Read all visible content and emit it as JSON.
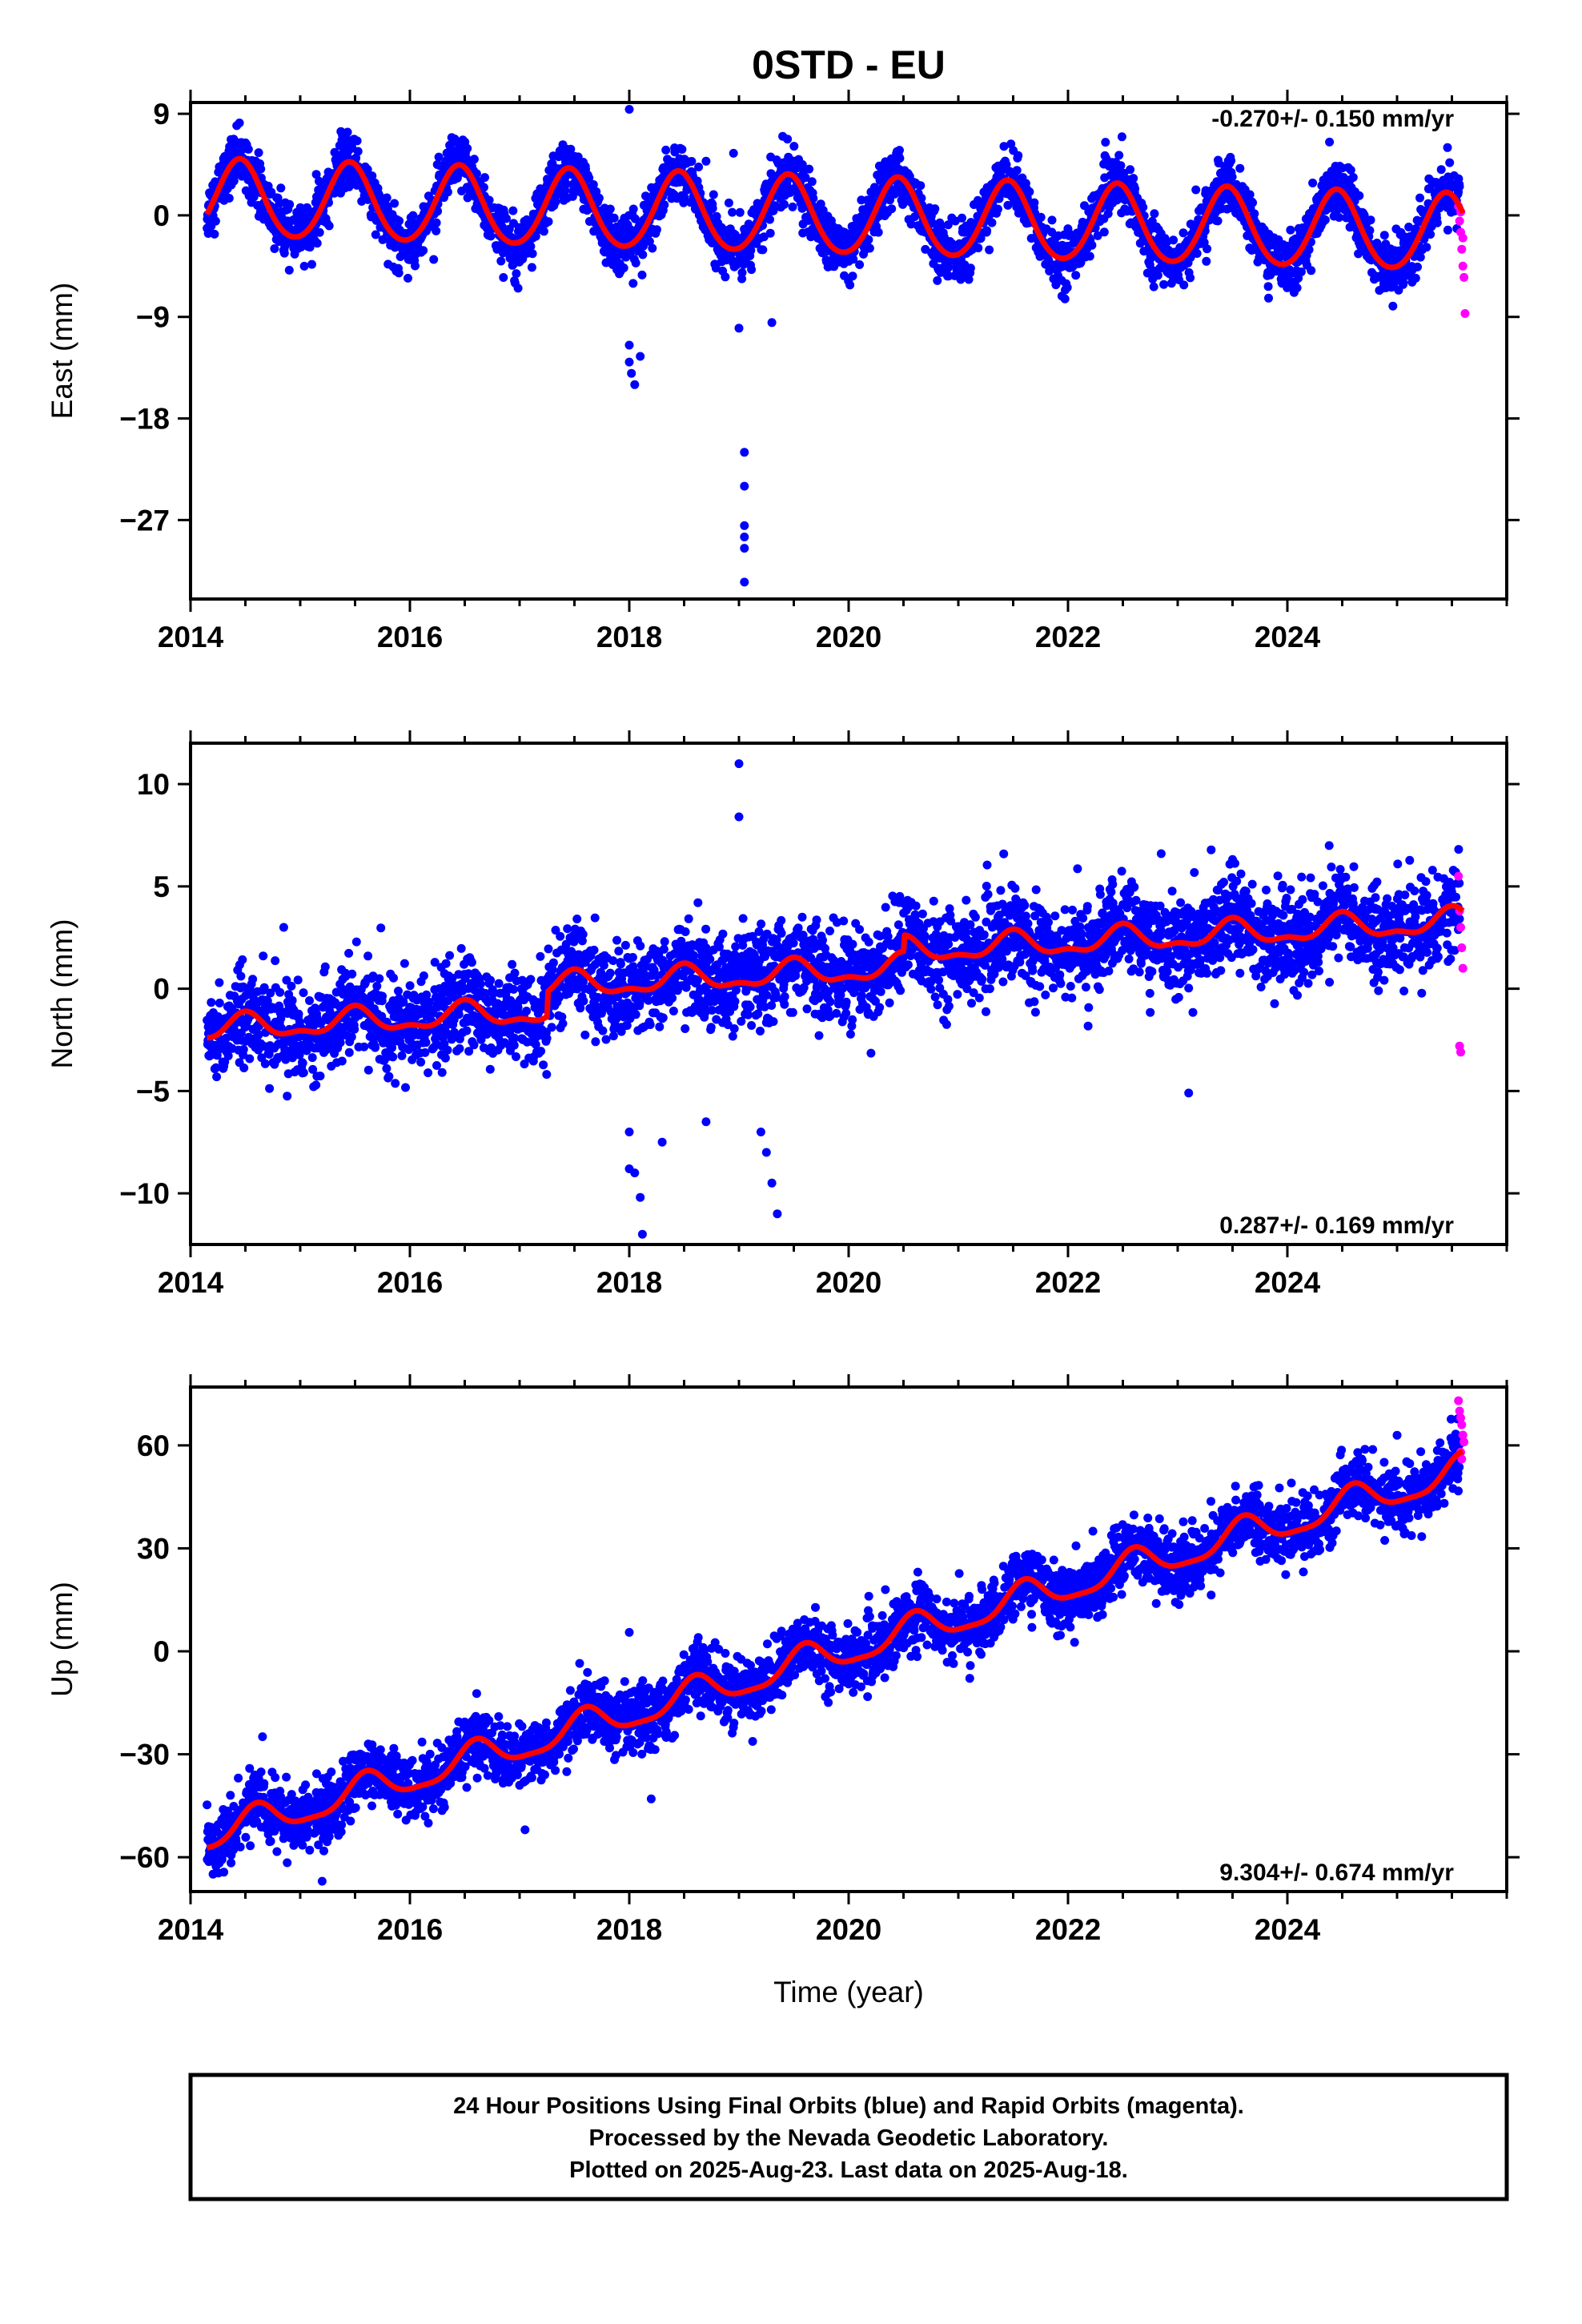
{
  "title": "0STD - EU",
  "caption": {
    "line1": "24 Hour Positions Using Final Orbits (blue) and Rapid Orbits (magenta).",
    "line2": "Processed by the Nevada Geodetic Laboratory.",
    "line3": "Plotted on 2025-Aug-23. Last data on 2025-Aug-18."
  },
  "colors": {
    "final": "#0000ff",
    "rapid": "#ff00ff",
    "model": "#ff0000"
  },
  "chart_data": [
    {
      "type": "scatter",
      "ylabel": "East (mm)",
      "xlabel": "",
      "xlim": [
        2014.0,
        2026.0
      ],
      "ylim": [
        -34,
        10
      ],
      "x_ticks": [
        2014,
        2016,
        2018,
        2020,
        2022,
        2024
      ],
      "y_ticks": [
        9,
        0,
        -9,
        -18,
        -27
      ],
      "y_tick_labels": [
        "9",
        "0",
        "−9",
        "−18",
        "−27"
      ],
      "rate_label": "-0.270+/- 0.150 mm/yr",
      "rate_position": "top-right",
      "model": {
        "start": 2014.15,
        "end": 2025.6,
        "offset": 1.4,
        "trend": -0.27,
        "annual_amp": 3.4,
        "annual_peak": 0.45,
        "semiannual_amp": 0.3
      },
      "scatter_sigma": 1.2,
      "outliers": [
        [
          2018.0,
          9.4
        ],
        [
          2018.0,
          -11.5
        ],
        [
          2018.0,
          -13.0
        ],
        [
          2018.02,
          -14.0
        ],
        [
          2018.05,
          -15.0
        ],
        [
          2018.1,
          -12.5
        ],
        [
          2018.7,
          4.8
        ],
        [
          2018.95,
          5.5
        ],
        [
          2019.05,
          -21.0
        ],
        [
          2019.05,
          -24.0
        ],
        [
          2019.05,
          -27.5
        ],
        [
          2019.05,
          -28.5
        ],
        [
          2019.05,
          -29.5
        ],
        [
          2019.05,
          -32.5
        ],
        [
          2019.3,
          -9.5
        ],
        [
          2019.0,
          -10.0
        ]
      ],
      "rapid_points": [
        [
          2025.56,
          0.8
        ],
        [
          2025.57,
          -0.5
        ],
        [
          2025.58,
          -1.5
        ],
        [
          2025.59,
          -3.0
        ],
        [
          2025.6,
          -4.5
        ],
        [
          2025.61,
          -5.5
        ],
        [
          2025.62,
          -8.7
        ],
        [
          2025.58,
          0.3
        ],
        [
          2025.6,
          -2.0
        ]
      ]
    },
    {
      "type": "scatter",
      "ylabel": "North (mm)",
      "xlabel": "",
      "xlim": [
        2014.0,
        2026.0
      ],
      "ylim": [
        -12.5,
        12
      ],
      "x_ticks": [
        2014,
        2016,
        2018,
        2020,
        2022,
        2024
      ],
      "y_ticks": [
        10,
        5,
        0,
        -5,
        -10
      ],
      "y_tick_labels": [
        "10",
        "5",
        "0",
        "−5",
        "−10"
      ],
      "rate_label": "0.287+/- 0.169 mm/yr",
      "rate_position": "bottom-right",
      "model": {
        "start": 2014.15,
        "end": 2025.6,
        "offset": -2.0,
        "trend": 0.287,
        "annual_amp": 0.55,
        "annual_peak": 0.5,
        "semiannual_amp": 0.25,
        "steps": [
          [
            2017.25,
            1.2
          ],
          [
            2020.5,
            0.8
          ]
        ]
      },
      "scatter_sigma": 1.1,
      "outliers": [
        [
          2019.0,
          11.0
        ],
        [
          2019.0,
          8.4
        ],
        [
          2022.85,
          6.6
        ],
        [
          2018.0,
          -7.0
        ],
        [
          2018.0,
          -8.8
        ],
        [
          2018.05,
          -9.0
        ],
        [
          2018.1,
          -10.2
        ],
        [
          2018.12,
          -12.0
        ],
        [
          2018.3,
          -7.5
        ],
        [
          2019.2,
          -7.0
        ],
        [
          2019.25,
          -8.0
        ],
        [
          2019.3,
          -9.5
        ],
        [
          2019.35,
          -11.0
        ],
        [
          2014.85,
          3.0
        ],
        [
          2023.1,
          -5.1
        ],
        [
          2018.7,
          -6.5
        ]
      ],
      "rapid_points": [
        [
          2025.56,
          5.5
        ],
        [
          2025.57,
          3.8
        ],
        [
          2025.58,
          3.0
        ],
        [
          2025.59,
          2.0
        ],
        [
          2025.6,
          1.0
        ],
        [
          2025.57,
          -2.8
        ],
        [
          2025.58,
          -3.1
        ]
      ]
    },
    {
      "type": "scatter",
      "ylabel": "Up (mm)",
      "xlabel": "Time (year)",
      "xlim": [
        2014.0,
        2026.0
      ],
      "ylim": [
        -70,
        77
      ],
      "x_ticks": [
        2014,
        2016,
        2018,
        2020,
        2022,
        2024
      ],
      "y_ticks": [
        60,
        30,
        0,
        -30,
        -60
      ],
      "y_tick_labels": [
        "60",
        "30",
        "0",
        "−30",
        "−60"
      ],
      "rate_label": "9.304+/- 0.674 mm/yr",
      "rate_position": "bottom-right",
      "model": {
        "start": 2014.15,
        "end": 2025.6,
        "offset": -54,
        "trend": 9.304,
        "annual_amp": 4.5,
        "annual_peak": 0.6,
        "semiannual_amp": 1.2
      },
      "scatter_sigma": 4.5,
      "outliers": [
        [
          2018.0,
          5.5
        ],
        [
          2018.2,
          -43.0
        ],
        [
          2017.05,
          -52.0
        ],
        [
          2015.2,
          -67.0
        ],
        [
          2023.55,
          31.0
        ]
      ],
      "rapid_points": [
        [
          2025.56,
          73.0
        ],
        [
          2025.57,
          70.0
        ],
        [
          2025.58,
          68.0
        ],
        [
          2025.59,
          66.0
        ],
        [
          2025.6,
          63.0
        ],
        [
          2025.61,
          61.0
        ],
        [
          2025.58,
          58.0
        ],
        [
          2025.59,
          56.0
        ]
      ]
    }
  ]
}
